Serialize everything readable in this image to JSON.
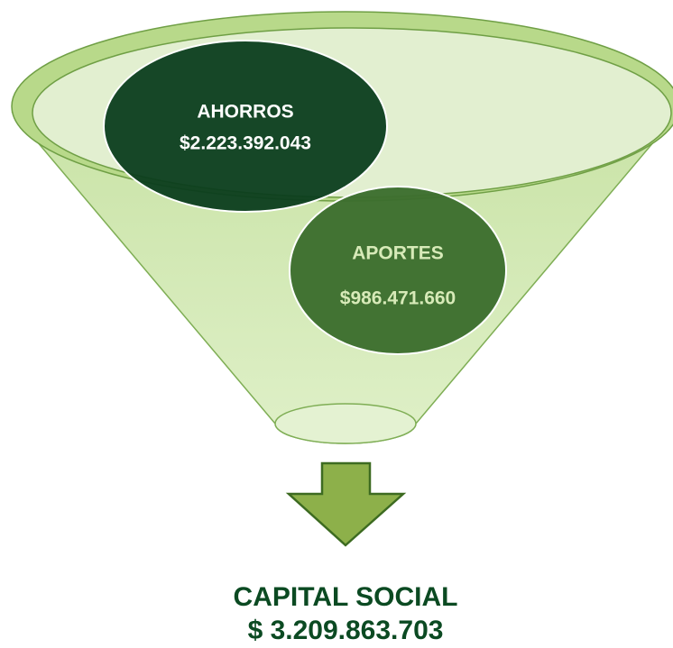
{
  "nodes": [
    {
      "label": "AHORROS",
      "value": "$2.223.392.043"
    },
    {
      "label": "APORTES",
      "value": "$986.471.660"
    }
  ],
  "result": {
    "label": "CAPITAL SOCIAL",
    "value": "$ 3.209.863.703"
  }
}
